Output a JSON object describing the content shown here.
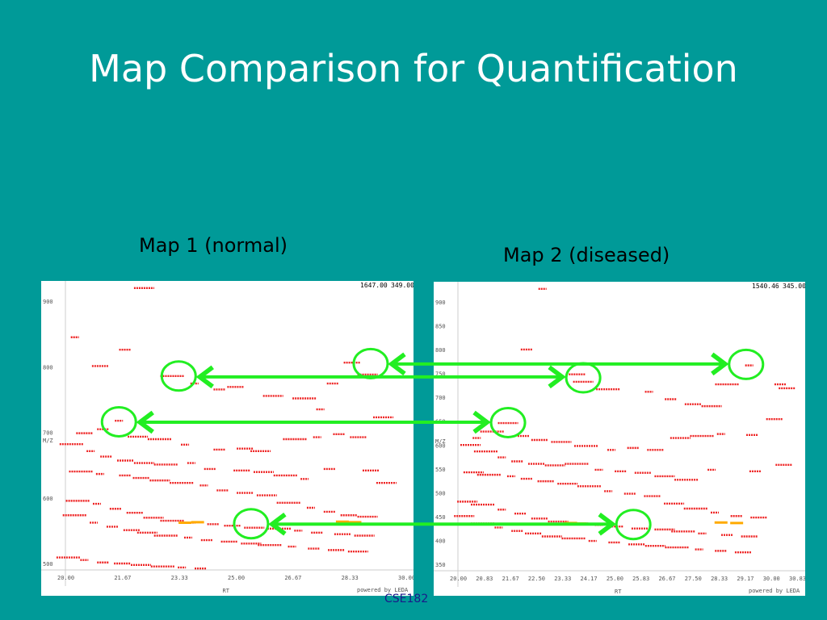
{
  "slide": {
    "title": "Map Comparison for Quantification",
    "footer": "CSE182"
  },
  "maps": [
    {
      "label": "Map 1 (normal)",
      "corner_readout": [
        "1647.00",
        "349.00"
      ],
      "y_axis_label": "M/Z",
      "x_axis_label": "RT",
      "y_ticks": [
        "900",
        "800",
        "700",
        "600",
        "500"
      ],
      "x_ticks": [
        "20.00",
        "21.67",
        "23.33",
        "25.00",
        "26.67",
        "28.33",
        "30.00"
      ],
      "watermark": "powered by LEDA"
    },
    {
      "label": "Map 2 (diseased)",
      "corner_readout": [
        "1540.46",
        "345.00"
      ],
      "y_axis_label": "M/Z",
      "x_axis_label": "RT",
      "y_ticks": [
        "900",
        "850",
        "800",
        "750",
        "700",
        "650",
        "600",
        "550",
        "500",
        "450",
        "400",
        "350"
      ],
      "x_ticks": [
        "20.00",
        "20.83",
        "21.67",
        "22.50",
        "23.33",
        "24.17",
        "25.00",
        "25.83",
        "26.67",
        "27.50",
        "28.33",
        "29.17",
        "30.00",
        "30.83"
      ],
      "watermark": "powered by LEDA"
    }
  ],
  "colors": {
    "background": "#009a98",
    "peak": "#ee2222",
    "peak_hot": "#ffaa00",
    "match_arrow": "#22ee22"
  },
  "chart_data": {
    "type": "scatter",
    "series": [
      {
        "name": "Map 1 (normal)",
        "points": [
          [
            20.3,
            813
          ],
          [
            21.9,
            788
          ],
          [
            21.1,
            755
          ],
          [
            22.5,
            912
          ],
          [
            23.4,
            735
          ],
          [
            24.1,
            720
          ],
          [
            24.9,
            708
          ],
          [
            25.4,
            713
          ],
          [
            26.6,
            695
          ],
          [
            27.6,
            690
          ],
          [
            28.1,
            668
          ],
          [
            28.5,
            720
          ],
          [
            29.1,
            762
          ],
          [
            29.6,
            738
          ],
          [
            29.2,
            642
          ],
          [
            21.7,
            645
          ],
          [
            21.2,
            628
          ],
          [
            20.6,
            620
          ],
          [
            22.3,
            613
          ],
          [
            23.0,
            608
          ],
          [
            23.8,
            597
          ],
          [
            24.9,
            587
          ],
          [
            25.7,
            589
          ],
          [
            26.2,
            584
          ],
          [
            27.3,
            608
          ],
          [
            28.0,
            612
          ],
          [
            28.7,
            618
          ],
          [
            29.3,
            612
          ],
          [
            30.1,
            652
          ],
          [
            20.2,
            598
          ],
          [
            20.8,
            584
          ],
          [
            21.3,
            573
          ],
          [
            21.9,
            565
          ],
          [
            22.5,
            560
          ],
          [
            23.2,
            557
          ],
          [
            24.0,
            560
          ],
          [
            24.6,
            548
          ],
          [
            25.6,
            545
          ],
          [
            26.3,
            542
          ],
          [
            27.0,
            535
          ],
          [
            27.6,
            528
          ],
          [
            28.4,
            548
          ],
          [
            29.7,
            545
          ],
          [
            30.2,
            520
          ],
          [
            20.5,
            543
          ],
          [
            21.1,
            538
          ],
          [
            21.9,
            535
          ],
          [
            22.4,
            530
          ],
          [
            23.0,
            525
          ],
          [
            23.7,
            520
          ],
          [
            24.4,
            515
          ],
          [
            25.0,
            505
          ],
          [
            25.7,
            500
          ],
          [
            26.4,
            495
          ],
          [
            27.1,
            480
          ],
          [
            27.8,
            470
          ],
          [
            28.4,
            462
          ],
          [
            29.0,
            455
          ],
          [
            29.6,
            452
          ],
          [
            20.4,
            484
          ],
          [
            21.0,
            478
          ],
          [
            21.6,
            468
          ],
          [
            22.2,
            460
          ],
          [
            22.8,
            450
          ],
          [
            23.4,
            444
          ],
          [
            24.0,
            440
          ],
          [
            24.7,
            437
          ],
          [
            25.3,
            434
          ],
          [
            26.0,
            430
          ],
          [
            26.8,
            428
          ],
          [
            27.4,
            424
          ],
          [
            28.0,
            420
          ],
          [
            28.8,
            417
          ],
          [
            29.5,
            414
          ],
          [
            20.3,
            455
          ],
          [
            20.9,
            440
          ],
          [
            21.5,
            432
          ],
          [
            22.1,
            425
          ],
          [
            22.6,
            420
          ],
          [
            23.2,
            414
          ],
          [
            23.9,
            410
          ],
          [
            24.5,
            405
          ],
          [
            25.2,
            402
          ],
          [
            25.9,
            398
          ],
          [
            26.5,
            395
          ],
          [
            27.2,
            392
          ],
          [
            27.9,
            388
          ],
          [
            28.6,
            385
          ],
          [
            29.3,
            382
          ],
          [
            20.1,
            370
          ],
          [
            20.6,
            365
          ],
          [
            21.2,
            360
          ],
          [
            21.8,
            358
          ],
          [
            22.4,
            355
          ],
          [
            23.1,
            352
          ],
          [
            23.7,
            350
          ],
          [
            24.3,
            348
          ]
        ],
        "hot_points": [
          [
            23.8,
            440
          ],
          [
            24.2,
            441
          ],
          [
            28.8,
            442
          ],
          [
            29.2,
            441
          ]
        ]
      },
      {
        "name": "Map 2 (diseased)",
        "points": [
          [
            22.7,
            912
          ],
          [
            22.2,
            790
          ],
          [
            23.8,
            740
          ],
          [
            24.0,
            725
          ],
          [
            24.8,
            710
          ],
          [
            26.1,
            705
          ],
          [
            26.8,
            690
          ],
          [
            27.5,
            680
          ],
          [
            28.1,
            676
          ],
          [
            28.6,
            720
          ],
          [
            29.3,
            758
          ],
          [
            30.3,
            720
          ],
          [
            30.5,
            712
          ],
          [
            21.6,
            642
          ],
          [
            21.1,
            625
          ],
          [
            20.6,
            612
          ],
          [
            22.1,
            616
          ],
          [
            22.6,
            608
          ],
          [
            23.3,
            604
          ],
          [
            24.1,
            596
          ],
          [
            24.9,
            588
          ],
          [
            25.6,
            592
          ],
          [
            26.3,
            588
          ],
          [
            27.1,
            612
          ],
          [
            27.8,
            616
          ],
          [
            28.4,
            620
          ],
          [
            29.4,
            618
          ],
          [
            30.1,
            650
          ],
          [
            20.4,
            598
          ],
          [
            20.9,
            585
          ],
          [
            21.4,
            573
          ],
          [
            21.9,
            565
          ],
          [
            22.5,
            560
          ],
          [
            23.1,
            557
          ],
          [
            23.8,
            560
          ],
          [
            24.5,
            548
          ],
          [
            25.2,
            545
          ],
          [
            25.9,
            542
          ],
          [
            26.6,
            535
          ],
          [
            27.3,
            528
          ],
          [
            28.1,
            548
          ],
          [
            29.5,
            545
          ],
          [
            30.4,
            558
          ],
          [
            20.5,
            543
          ],
          [
            21.0,
            538
          ],
          [
            21.7,
            535
          ],
          [
            22.2,
            530
          ],
          [
            22.8,
            525
          ],
          [
            23.5,
            520
          ],
          [
            24.2,
            515
          ],
          [
            24.8,
            505
          ],
          [
            25.5,
            500
          ],
          [
            26.2,
            495
          ],
          [
            26.9,
            480
          ],
          [
            27.6,
            470
          ],
          [
            28.2,
            462
          ],
          [
            28.9,
            455
          ],
          [
            29.6,
            452
          ],
          [
            20.3,
            484
          ],
          [
            20.8,
            478
          ],
          [
            21.4,
            468
          ],
          [
            22.0,
            460
          ],
          [
            22.6,
            450
          ],
          [
            23.2,
            444
          ],
          [
            23.8,
            440
          ],
          [
            24.5,
            437
          ],
          [
            25.1,
            434
          ],
          [
            25.8,
            430
          ],
          [
            26.6,
            428
          ],
          [
            27.2,
            424
          ],
          [
            27.8,
            420
          ],
          [
            28.6,
            417
          ],
          [
            29.3,
            414
          ],
          [
            20.2,
            455
          ],
          [
            20.8,
            440
          ],
          [
            21.3,
            432
          ],
          [
            21.9,
            425
          ],
          [
            22.4,
            420
          ],
          [
            23.0,
            414
          ],
          [
            23.7,
            410
          ],
          [
            24.3,
            405
          ],
          [
            25.0,
            402
          ],
          [
            25.7,
            398
          ],
          [
            26.3,
            395
          ],
          [
            27.0,
            392
          ],
          [
            27.7,
            388
          ],
          [
            28.4,
            385
          ],
          [
            29.1,
            382
          ]
        ],
        "hot_points": [
          [
            23.6,
            441
          ],
          [
            23.9,
            440
          ],
          [
            28.4,
            442
          ],
          [
            28.9,
            441
          ]
        ]
      }
    ],
    "matched_features": [
      {
        "map1": [
          29.7,
          760
        ],
        "map2": [
          29.2,
          760
        ]
      },
      {
        "map1": [
          23.6,
          735
        ],
        "map2": [
          24.0,
          733
        ]
      },
      {
        "map1": [
          21.7,
          643
        ],
        "map2": [
          21.6,
          643
        ]
      },
      {
        "map1": [
          25.9,
          438
        ],
        "map2": [
          25.6,
          438
        ]
      }
    ]
  }
}
